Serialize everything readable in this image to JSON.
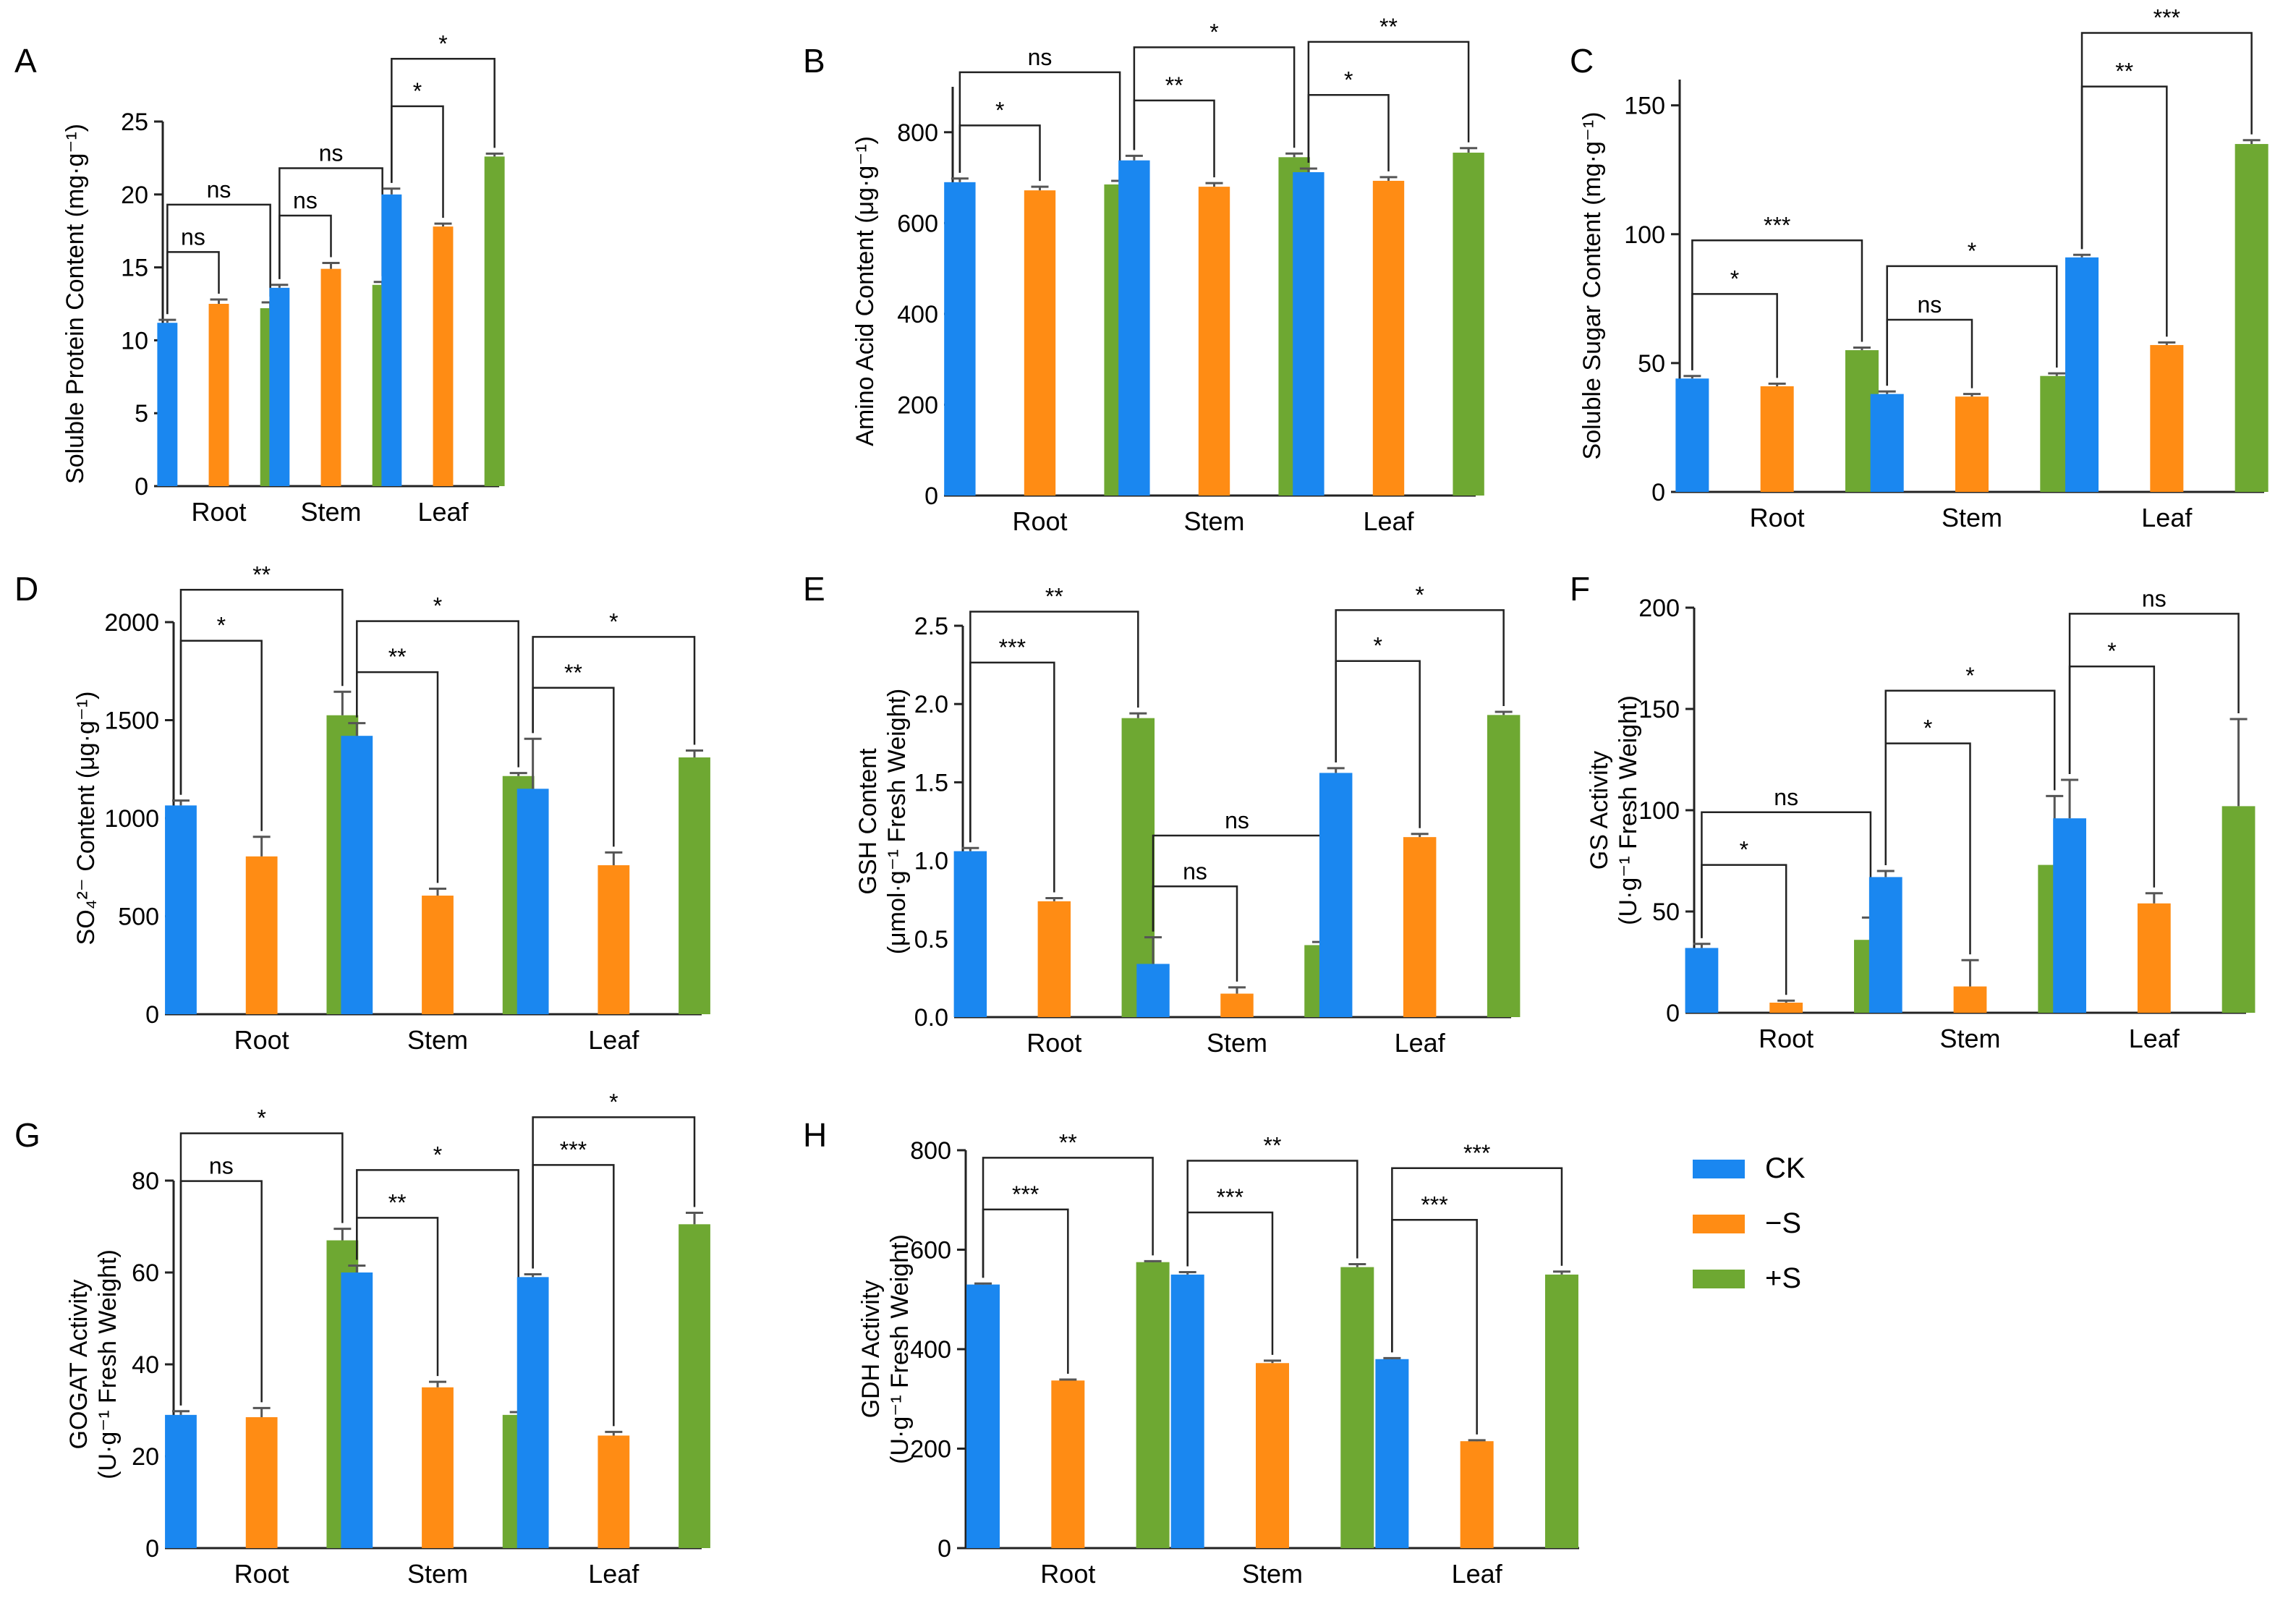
{
  "colors": {
    "CK": "#1a87f0",
    "-S": "#ff8c14",
    "+S": "#6ea832"
  },
  "legend": [
    {
      "key": "CK",
      "label": "CK"
    },
    {
      "key": "-S",
      "label": "−S"
    },
    {
      "key": "+S",
      "label": "+S"
    }
  ],
  "chart_data": [
    {
      "panel": "A",
      "type": "bar",
      "ylabel": "Soluble Protein Content (mg·g⁻¹)",
      "categories": [
        "Root",
        "Stem",
        "Leaf"
      ],
      "ylim": [
        0,
        25
      ],
      "yticks": [
        0,
        5,
        10,
        15,
        20,
        25
      ],
      "series": [
        {
          "name": "CK",
          "values": [
            11.2,
            13.6,
            20.0
          ],
          "errors": [
            0.2,
            0.2,
            0.4
          ]
        },
        {
          "name": "-S",
          "values": [
            12.5,
            14.9,
            17.8
          ],
          "errors": [
            0.3,
            0.4,
            0.2
          ]
        },
        {
          "name": "+S",
          "values": [
            12.2,
            13.8,
            22.6
          ],
          "errors": [
            0.4,
            0.2,
            0.2
          ]
        }
      ],
      "significance": [
        {
          "group": 0,
          "to": "-S",
          "label": "ns"
        },
        {
          "group": 0,
          "to": "+S",
          "label": "ns"
        },
        {
          "group": 1,
          "to": "-S",
          "label": "ns"
        },
        {
          "group": 1,
          "to": "+S",
          "label": "ns"
        },
        {
          "group": 2,
          "to": "-S",
          "label": "*"
        },
        {
          "group": 2,
          "to": "+S",
          "label": "*"
        }
      ]
    },
    {
      "panel": "B",
      "type": "bar",
      "ylabel": "Amino Acid Content (μg·g⁻¹)",
      "categories": [
        "Root",
        "Stem",
        "Leaf"
      ],
      "ylim": [
        0,
        900
      ],
      "yticks": [
        0,
        200,
        400,
        600,
        800
      ],
      "series": [
        {
          "name": "CK",
          "values": [
            690,
            738,
            712
          ],
          "errors": [
            8,
            10,
            8
          ]
        },
        {
          "name": "-S",
          "values": [
            672,
            680,
            693
          ],
          "errors": [
            8,
            8,
            8
          ]
        },
        {
          "name": "+S",
          "values": [
            685,
            745,
            755
          ],
          "errors": [
            8,
            8,
            10
          ]
        }
      ],
      "significance": [
        {
          "group": 0,
          "to": "-S",
          "label": "*"
        },
        {
          "group": 0,
          "to": "+S",
          "label": "ns"
        },
        {
          "group": 1,
          "to": "-S",
          "label": "**"
        },
        {
          "group": 1,
          "to": "+S",
          "label": "*"
        },
        {
          "group": 2,
          "to": "-S",
          "label": "*"
        },
        {
          "group": 2,
          "to": "+S",
          "label": "**"
        }
      ]
    },
    {
      "panel": "C",
      "type": "bar",
      "ylabel": "Soluble Sugar Content (mg·g⁻¹)",
      "categories": [
        "Root",
        "Stem",
        "Leaf"
      ],
      "ylim": [
        0,
        160
      ],
      "yticks": [
        0,
        50,
        100,
        150
      ],
      "series": [
        {
          "name": "CK",
          "values": [
            44,
            38,
            91
          ],
          "errors": [
            1,
            1,
            1
          ]
        },
        {
          "name": "-S",
          "values": [
            41,
            37,
            57
          ],
          "errors": [
            1,
            1,
            1
          ]
        },
        {
          "name": "+S",
          "values": [
            55,
            45,
            135
          ],
          "errors": [
            1,
            1,
            1.5
          ]
        }
      ],
      "significance": [
        {
          "group": 0,
          "to": "-S",
          "label": "*"
        },
        {
          "group": 0,
          "to": "+S",
          "label": "***"
        },
        {
          "group": 1,
          "to": "-S",
          "label": "ns"
        },
        {
          "group": 1,
          "to": "+S",
          "label": "*"
        },
        {
          "group": 2,
          "to": "-S",
          "label": "**"
        },
        {
          "group": 2,
          "to": "+S",
          "label": "***"
        }
      ]
    },
    {
      "panel": "D",
      "type": "bar",
      "ylabel": "SO₄²⁻ Content (μg·g⁻¹)",
      "categories": [
        "Root",
        "Stem",
        "Leaf"
      ],
      "ylim": [
        0,
        2000
      ],
      "yticks": [
        0,
        500,
        1000,
        1500,
        2000
      ],
      "series": [
        {
          "name": "CK",
          "values": [
            1065,
            1420,
            1150
          ],
          "errors": [
            25,
            65,
            255
          ]
        },
        {
          "name": "-S",
          "values": [
            805,
            605,
            760
          ],
          "errors": [
            100,
            35,
            65
          ]
        },
        {
          "name": "+S",
          "values": [
            1525,
            1215,
            1310
          ],
          "errors": [
            120,
            15,
            35
          ]
        }
      ],
      "significance": [
        {
          "group": 0,
          "to": "-S",
          "label": "*"
        },
        {
          "group": 0,
          "to": "+S",
          "label": "**"
        },
        {
          "group": 1,
          "to": "-S",
          "label": "**"
        },
        {
          "group": 1,
          "to": "+S",
          "label": "*"
        },
        {
          "group": 2,
          "to": "-S",
          "label": "**"
        },
        {
          "group": 2,
          "to": "+S",
          "label": "*"
        }
      ]
    },
    {
      "panel": "E",
      "type": "bar",
      "ylabel": "GSH Content",
      "ylabel2": "(μmol·g⁻¹ Fresh Weight)",
      "categories": [
        "Root",
        "Stem",
        "Leaf"
      ],
      "ylim": [
        0,
        2.5
      ],
      "yticks": [
        "0.0",
        "0.5",
        "1.0",
        "1.5",
        "2.0",
        "2.5"
      ],
      "series": [
        {
          "name": "CK",
          "values": [
            1.06,
            0.34,
            1.56
          ],
          "errors": [
            0.02,
            0.17,
            0.03
          ]
        },
        {
          "name": "-S",
          "values": [
            0.74,
            0.15,
            1.15
          ],
          "errors": [
            0.02,
            0.04,
            0.02
          ]
        },
        {
          "name": "+S",
          "values": [
            1.91,
            0.46,
            1.93
          ],
          "errors": [
            0.03,
            0.02,
            0.02
          ]
        }
      ],
      "significance": [
        {
          "group": 0,
          "to": "-S",
          "label": "***"
        },
        {
          "group": 0,
          "to": "+S",
          "label": "**"
        },
        {
          "group": 1,
          "to": "-S",
          "label": "ns"
        },
        {
          "group": 1,
          "to": "+S",
          "label": "ns"
        },
        {
          "group": 2,
          "to": "-S",
          "label": "*"
        },
        {
          "group": 2,
          "to": "+S",
          "label": "*"
        }
      ]
    },
    {
      "panel": "F",
      "type": "bar",
      "ylabel": "GS Activity",
      "ylabel2": "(U·g⁻¹ Fresh Weight)",
      "categories": [
        "Root",
        "Stem",
        "Leaf"
      ],
      "ylim": [
        0,
        200
      ],
      "yticks": [
        0,
        50,
        100,
        150,
        200
      ],
      "series": [
        {
          "name": "CK",
          "values": [
            32,
            67,
            96
          ],
          "errors": [
            2,
            3,
            19
          ]
        },
        {
          "name": "-S",
          "values": [
            5,
            13,
            54
          ],
          "errors": [
            1,
            13,
            5
          ]
        },
        {
          "name": "+S",
          "values": [
            36,
            73,
            102
          ],
          "errors": [
            11,
            34,
            43
          ]
        }
      ],
      "significance": [
        {
          "group": 0,
          "to": "-S",
          "label": "*"
        },
        {
          "group": 0,
          "to": "+S",
          "label": "ns"
        },
        {
          "group": 1,
          "to": "-S",
          "label": "*"
        },
        {
          "group": 1,
          "to": "+S",
          "label": "*"
        },
        {
          "group": 2,
          "to": "-S",
          "label": "*"
        },
        {
          "group": 2,
          "to": "+S",
          "label": "ns"
        }
      ]
    },
    {
      "panel": "G",
      "type": "bar",
      "ylabel": "GOGAT Activity",
      "ylabel2": "(U·g⁻¹ Fresh Weight)",
      "categories": [
        "Root",
        "Stem",
        "Leaf"
      ],
      "ylim": [
        0,
        80
      ],
      "yticks": [
        0,
        20,
        40,
        60,
        80
      ],
      "series": [
        {
          "name": "CK",
          "values": [
            29,
            60,
            59
          ],
          "errors": [
            0.8,
            1.5,
            0.6
          ]
        },
        {
          "name": "-S",
          "values": [
            28.5,
            35,
            24.5
          ],
          "errors": [
            2,
            1.2,
            0.8
          ]
        },
        {
          "name": "+S",
          "values": [
            67,
            29,
            70.5
          ],
          "errors": [
            2.5,
            0.6,
            2.5
          ]
        }
      ],
      "significance": [
        {
          "group": 0,
          "to": "-S",
          "label": "ns"
        },
        {
          "group": 0,
          "to": "+S",
          "label": "*"
        },
        {
          "group": 1,
          "to": "-S",
          "label": "**"
        },
        {
          "group": 1,
          "to": "+S",
          "label": "*"
        },
        {
          "group": 2,
          "to": "-S",
          "label": "***"
        },
        {
          "group": 2,
          "to": "+S",
          "label": "*"
        }
      ]
    },
    {
      "panel": "H",
      "type": "bar",
      "ylabel": "GDH Activity",
      "ylabel2": "(U·g⁻¹ Fresh Weight)",
      "categories": [
        "Root",
        "Stem",
        "Leaf"
      ],
      "ylim": [
        0,
        800
      ],
      "yticks": [
        0,
        200,
        400,
        600,
        800
      ],
      "series": [
        {
          "name": "CK",
          "values": [
            530,
            550,
            380
          ],
          "errors": [
            2,
            5,
            2
          ]
        },
        {
          "name": "-S",
          "values": [
            337,
            372,
            215
          ],
          "errors": [
            2,
            5,
            2
          ]
        },
        {
          "name": "+S",
          "values": [
            575,
            565,
            550
          ],
          "errors": [
            2,
            6,
            6
          ]
        }
      ],
      "significance": [
        {
          "group": 0,
          "to": "-S",
          "label": "***"
        },
        {
          "group": 0,
          "to": "+S",
          "label": "**"
        },
        {
          "group": 1,
          "to": "-S",
          "label": "***"
        },
        {
          "group": 1,
          "to": "+S",
          "label": "**"
        },
        {
          "group": 2,
          "to": "-S",
          "label": "***"
        },
        {
          "group": 2,
          "to": "+S",
          "label": "***"
        }
      ]
    }
  ]
}
